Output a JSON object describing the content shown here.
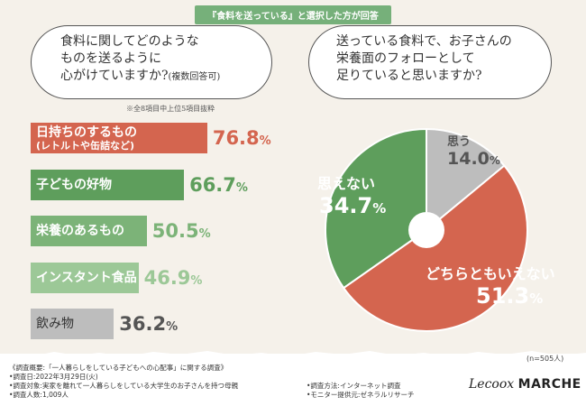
{
  "header": {
    "tag": "『食料を送っている』と選択した方が回答"
  },
  "left_question": {
    "line1": "食料に関してどのような",
    "line2": "ものを送るように",
    "line3": "心がけていますか?",
    "line3_small": "(複数回答可)",
    "note": "※全8項目中上位5項目抜粋"
  },
  "right_question": {
    "line1": "送っている食料で、お子さんの",
    "line2": "栄養面のフォローとして",
    "line3": "足りていると思いますか?"
  },
  "colors": {
    "red": "#d4654f",
    "dark_green": "#5e9e5c",
    "mid_green": "#7cb378",
    "light_green": "#9cc897",
    "gray": "#bdbdbd"
  },
  "chart_data": [
    {
      "type": "bar",
      "orientation": "horizontal",
      "categories": [
        "日持ちのするもの(レトルトや缶詰など)",
        "子どもの好物",
        "栄養のあるもの",
        "インスタント食品",
        "飲み物"
      ],
      "category_lines": [
        [
          "日持ちのするもの",
          "(レトルトや缶詰など)"
        ],
        [
          "子どもの好物"
        ],
        [
          "栄養のあるもの"
        ],
        [
          "インスタント食品"
        ],
        [
          "飲み物"
        ]
      ],
      "values": [
        76.8,
        66.7,
        50.5,
        46.9,
        36.2
      ],
      "value_labels": [
        "76.8",
        "66.7",
        "50.5",
        "46.9",
        "36.2"
      ],
      "unit": "%",
      "colors": [
        "#d4654f",
        "#5e9e5c",
        "#7cb378",
        "#9cc897",
        "#bdbdbd"
      ],
      "xlim": [
        0,
        100
      ]
    },
    {
      "type": "pie",
      "donut": true,
      "labels": [
        "思う",
        "どちらともいえない",
        "思えない"
      ],
      "values": [
        14.0,
        51.3,
        34.7
      ],
      "value_labels": [
        "14.0",
        "51.3",
        "34.7"
      ],
      "unit": "%",
      "colors": [
        "#bdbdbd",
        "#d4654f",
        "#5e9e5c"
      ],
      "start": "12 o'clock",
      "direction": "clockwise"
    }
  ],
  "footer": {
    "n": "(n=505人)",
    "survey_left": [
      "《調査概要:「一人暮らしをしている子どもへの心配事」に関する調査》",
      "•調査日:2022年3月29日(火)",
      "•調査対象:実家を離れて一人暮らしをしている大学生のお子さんを持つ母親",
      "•調査人数:1,009人"
    ],
    "survey_right": [
      "•調査方法:インターネット調査",
      "•モニター提供元:ゼネラルリサーチ"
    ],
    "brand_script": "Lecoox",
    "brand_bold": "MARCHE"
  }
}
